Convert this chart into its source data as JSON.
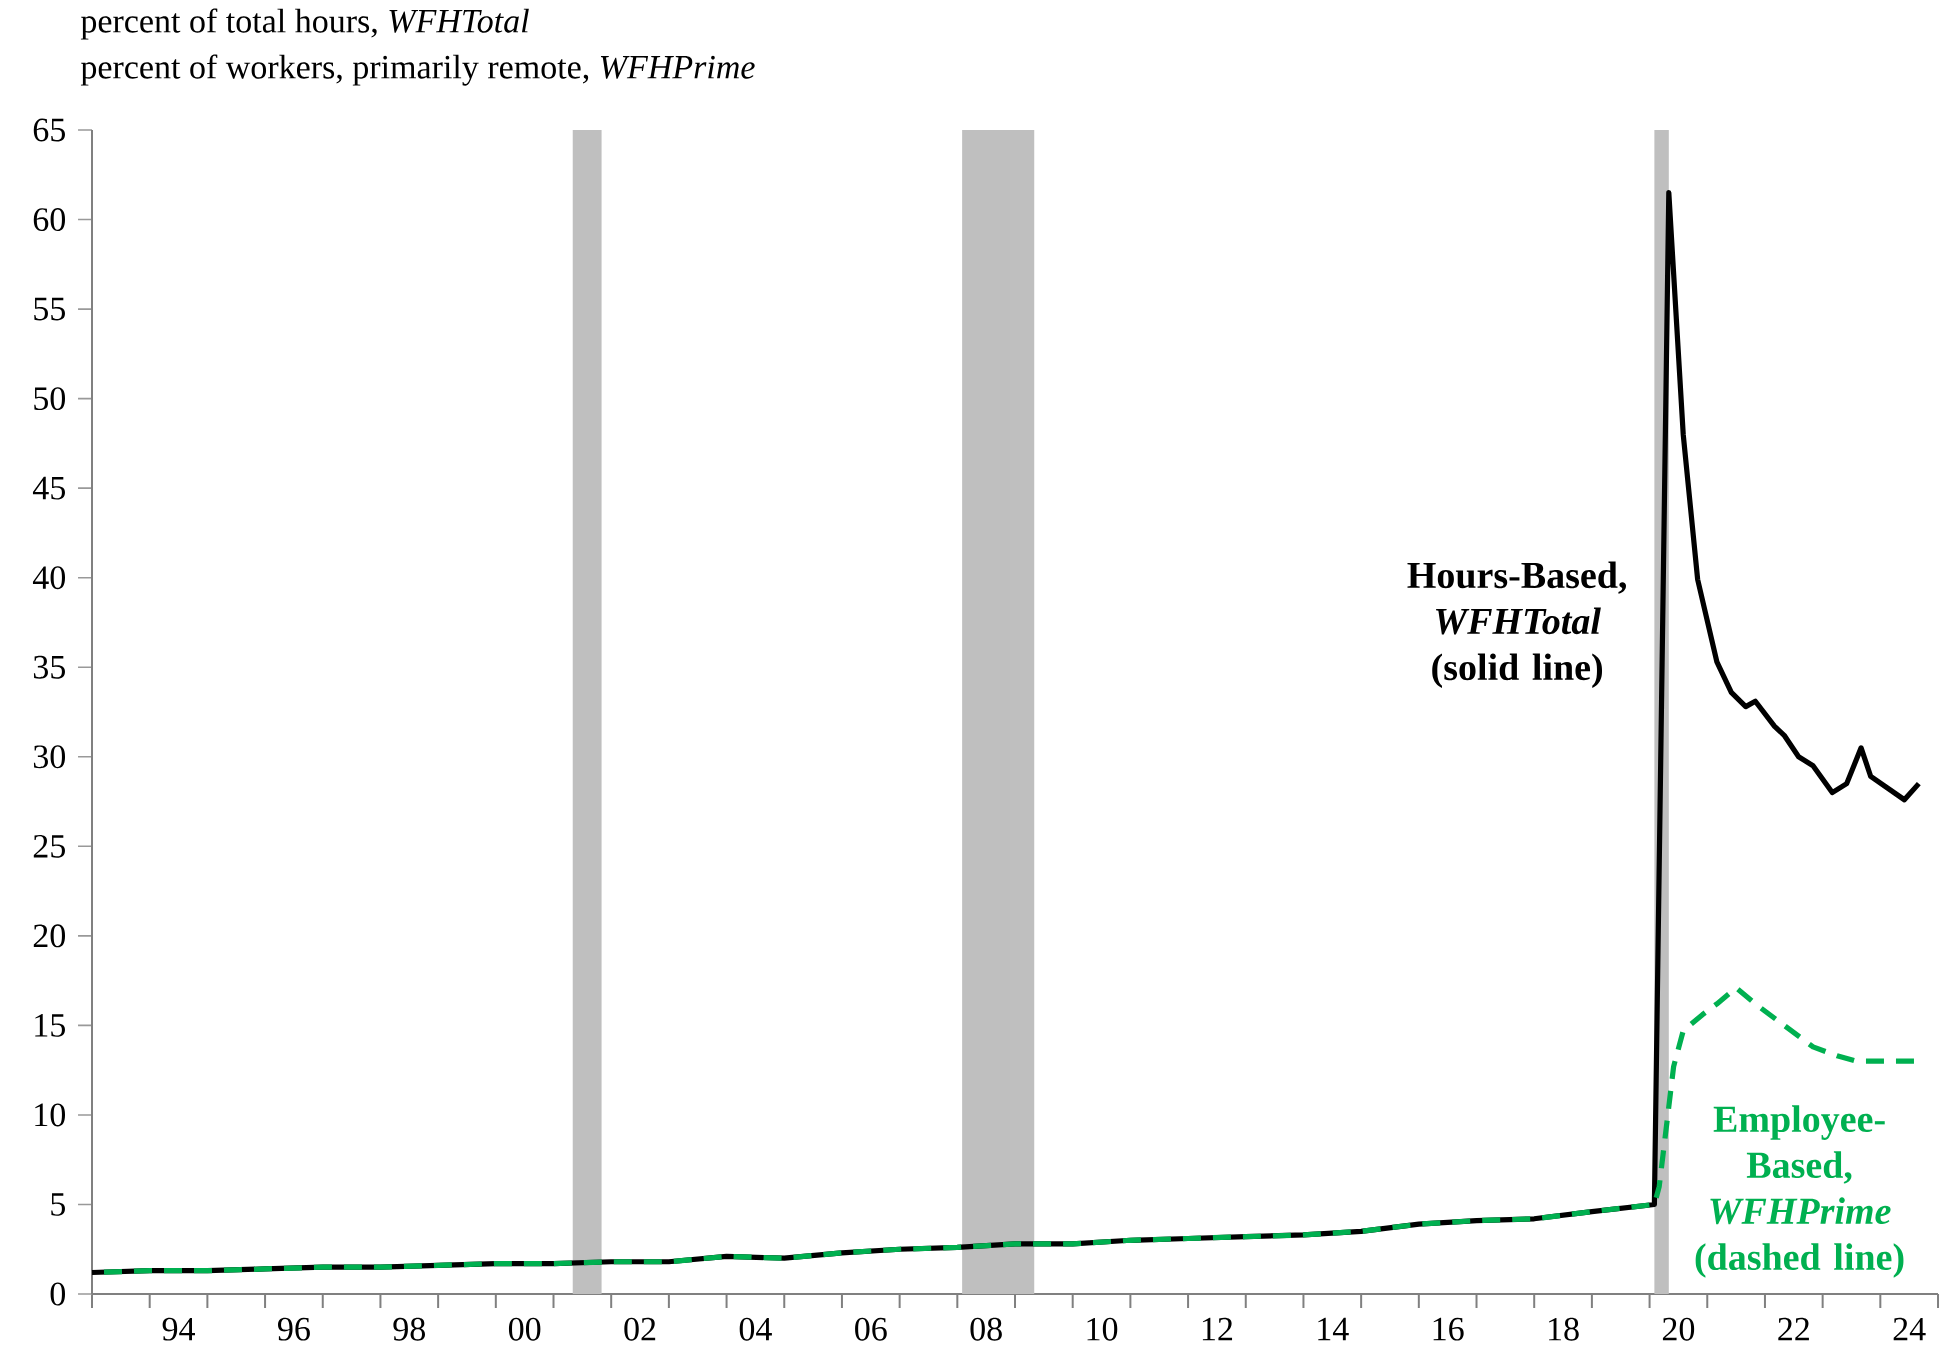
{
  "chart_data": {
    "type": "line",
    "title": "percent of total hours, *WFHTotal*",
    "subtitle": "percent of workers, primarily remote, *WFHPrime*",
    "xlim": [
      "1993-01",
      "2025-01"
    ],
    "xticks": [
      {
        "value": "1993-01",
        "label": null
      },
      {
        "value": "1994-01",
        "label": null
      },
      {
        "value": "1995-01",
        "label": null
      },
      {
        "value": "1996-01",
        "label": null
      },
      {
        "value": "1997-01",
        "label": null
      },
      {
        "value": "1998-01",
        "label": null
      },
      {
        "value": "1999-01",
        "label": null
      },
      {
        "value": "2000-01",
        "label": null
      },
      {
        "value": "2001-01",
        "label": null
      },
      {
        "value": "2002-01",
        "label": null
      },
      {
        "value": "2003-01",
        "label": null
      },
      {
        "value": "2004-01",
        "label": null
      },
      {
        "value": "2005-01",
        "label": null
      },
      {
        "value": "2006-01",
        "label": null
      },
      {
        "value": "2007-01",
        "label": null
      },
      {
        "value": "2008-01",
        "label": null
      },
      {
        "value": "2009-01",
        "label": null
      },
      {
        "value": "2010-01",
        "label": null
      },
      {
        "value": "2011-01",
        "label": null
      },
      {
        "value": "2012-01",
        "label": null
      },
      {
        "value": "2013-01",
        "label": null
      },
      {
        "value": "2014-01",
        "label": null
      },
      {
        "value": "2015-01",
        "label": null
      },
      {
        "value": "2016-01",
        "label": null
      },
      {
        "value": "2017-01",
        "label": null
      },
      {
        "value": "2018-01",
        "label": null
      },
      {
        "value": "2019-01",
        "label": null
      },
      {
        "value": "2020-01",
        "label": null
      },
      {
        "value": "2021-01",
        "label": null
      },
      {
        "value": "2022-01",
        "label": null
      },
      {
        "value": "2023-01",
        "label": null
      },
      {
        "value": "2024-01",
        "label": null
      },
      {
        "value": "2025-01",
        "label": null
      },
      {
        "value": "1994-07",
        "label": "94"
      },
      {
        "value": "1996-07",
        "label": "96"
      },
      {
        "value": "1998-07",
        "label": "98"
      },
      {
        "value": "2000-07",
        "label": "00"
      },
      {
        "value": "2002-07",
        "label": "02"
      },
      {
        "value": "2004-07",
        "label": "04"
      },
      {
        "value": "2006-07",
        "label": "06"
      },
      {
        "value": "2008-07",
        "label": "08"
      },
      {
        "value": "2010-07",
        "label": "10"
      },
      {
        "value": "2012-07",
        "label": "12"
      },
      {
        "value": "2014-07",
        "label": "14"
      },
      {
        "value": "2016-07",
        "label": "16"
      },
      {
        "value": "2018-07",
        "label": "18"
      },
      {
        "value": "2020-07",
        "label": "20"
      },
      {
        "value": "2022-07",
        "label": "22"
      },
      {
        "value": "2024-07",
        "label": "24"
      }
    ],
    "ylim": [
      0,
      65
    ],
    "yticks": [
      0,
      5,
      10,
      15,
      20,
      25,
      30,
      35,
      40,
      45,
      50,
      55,
      60,
      65
    ],
    "bands": [
      {
        "axis": "x",
        "from": "2001-05",
        "to": "2001-11",
        "color": "#bfbfbf"
      },
      {
        "axis": "x",
        "from": "2008-02",
        "to": "2009-05",
        "color": "#bfbfbf"
      },
      {
        "axis": "x",
        "from": "2020-02",
        "to": "2020-05",
        "color": "#bfbfbf"
      }
    ],
    "series": [
      {
        "color": "#000000",
        "line_style": "solid",
        "x": [
          "1993-01",
          "1994-01",
          "1995-01",
          "1996-01",
          "1997-01",
          "1998-01",
          "1999-01",
          "2000-01",
          "2001-01",
          "2002-01",
          "2003-01",
          "2004-01",
          "2005-01",
          "2006-01",
          "2007-01",
          "2008-01",
          "2009-01",
          "2010-01",
          "2011-01",
          "2012-01",
          "2013-01",
          "2014-01",
          "2015-01",
          "2016-01",
          "2017-01",
          "2018-01",
          "2019-01",
          "2020-02",
          "2020-05",
          "2020-08",
          "2020-11",
          "2021-03",
          "2021-06",
          "2021-09",
          "2021-11",
          "2022-03",
          "2022-05",
          "2022-08",
          "2022-11",
          "2023-03",
          "2023-06",
          "2023-09",
          "2023-11",
          "2024-06",
          "2024-09"
        ],
        "values": [
          1.2,
          1.3,
          1.3,
          1.4,
          1.5,
          1.5,
          1.6,
          1.7,
          1.7,
          1.8,
          1.8,
          2.1,
          2.0,
          2.3,
          2.5,
          2.6,
          2.8,
          2.8,
          3.0,
          3.1,
          3.2,
          3.3,
          3.5,
          3.9,
          4.1,
          4.2,
          4.6,
          5.0,
          61.5,
          48.0,
          39.9,
          35.3,
          33.6,
          32.8,
          33.1,
          31.7,
          31.2,
          30.0,
          29.5,
          28.0,
          28.5,
          30.5,
          28.9,
          27.6,
          28.5
        ]
      },
      {
        "color": "#00b050",
        "line_style": "dashed",
        "x": [
          "1993-01",
          "1994-01",
          "1995-01",
          "1996-01",
          "1997-01",
          "1998-01",
          "1999-01",
          "2000-01",
          "2001-01",
          "2002-01",
          "2003-01",
          "2004-01",
          "2005-01",
          "2006-01",
          "2007-01",
          "2008-01",
          "2009-01",
          "2010-01",
          "2011-01",
          "2012-01",
          "2013-01",
          "2014-01",
          "2015-01",
          "2016-01",
          "2017-01",
          "2018-01",
          "2019-01",
          "2020-02",
          "2020-03",
          "2020-06",
          "2020-08",
          "2020-12",
          "2021-03",
          "2021-07",
          "2021-11",
          "2022-05",
          "2022-11",
          "2023-04",
          "2023-08",
          "2024-09"
        ],
        "values": [
          1.2,
          1.3,
          1.3,
          1.4,
          1.5,
          1.5,
          1.6,
          1.7,
          1.7,
          1.8,
          1.8,
          2.1,
          2.0,
          2.3,
          2.5,
          2.6,
          2.8,
          2.8,
          3.0,
          3.1,
          3.2,
          3.3,
          3.5,
          3.9,
          4.1,
          4.2,
          4.6,
          5.0,
          6.0,
          12.7,
          14.7,
          15.6,
          16.2,
          17.1,
          16.2,
          15.0,
          13.8,
          13.3,
          13.0,
          13.0
        ]
      }
    ],
    "annotations": [
      "Hours-Based, *WFHTotal* (solid line)",
      "Employee-Based, *WFHPrime* (dashed line)"
    ]
  }
}
